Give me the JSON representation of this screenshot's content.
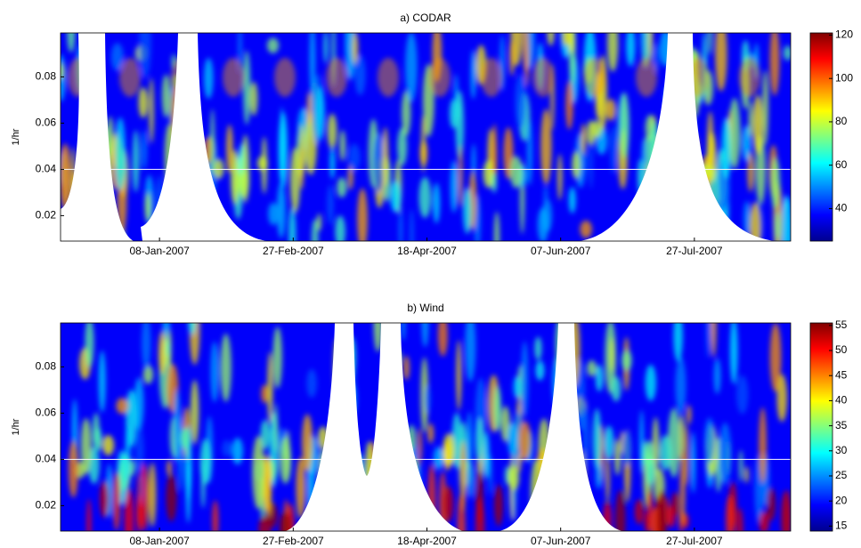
{
  "chart_data": [
    {
      "type": "heatmap",
      "title": "a) CODAR",
      "ylabel": "1/hr",
      "colormap": "jet",
      "xlim": [
        "2006-12-02",
        "2007-09-01"
      ],
      "xticks": [
        {
          "value": "2007-01-08",
          "label": "08-Jan-2007"
        },
        {
          "value": "2007-02-27",
          "label": "27-Feb-2007"
        },
        {
          "value": "2007-04-18",
          "label": "18-Apr-2007"
        },
        {
          "value": "2007-06-07",
          "label": "07-Jun-2007"
        },
        {
          "value": "2007-07-27",
          "label": "27-Jul-2007"
        }
      ],
      "ylim": [
        0.009,
        0.099
      ],
      "yticks": [
        0.02,
        0.04,
        0.06,
        0.08
      ],
      "reference_line": 0.04,
      "colorbar": {
        "lim": [
          25,
          121
        ],
        "ticks": [
          40,
          60,
          80,
          100,
          120
        ]
      }
    },
    {
      "type": "heatmap",
      "title": "b) Wind",
      "ylabel": "1/hr",
      "colormap": "jet",
      "xlim": [
        "2006-12-02",
        "2007-09-01"
      ],
      "xticks": [
        {
          "value": "2007-01-08",
          "label": "08-Jan-2007"
        },
        {
          "value": "2007-02-27",
          "label": "27-Feb-2007"
        },
        {
          "value": "2007-04-18",
          "label": "18-Apr-2007"
        },
        {
          "value": "2007-06-07",
          "label": "07-Jun-2007"
        },
        {
          "value": "2007-07-27",
          "label": "27-Jul-2007"
        }
      ],
      "ylim": [
        0.009,
        0.099
      ],
      "yticks": [
        0.02,
        0.04,
        0.06,
        0.08
      ],
      "reference_line": 0.04,
      "colorbar": {
        "lim": [
          14,
          55.5
        ],
        "ticks": [
          15,
          20,
          25,
          30,
          35,
          40,
          45,
          50,
          55
        ]
      }
    }
  ]
}
